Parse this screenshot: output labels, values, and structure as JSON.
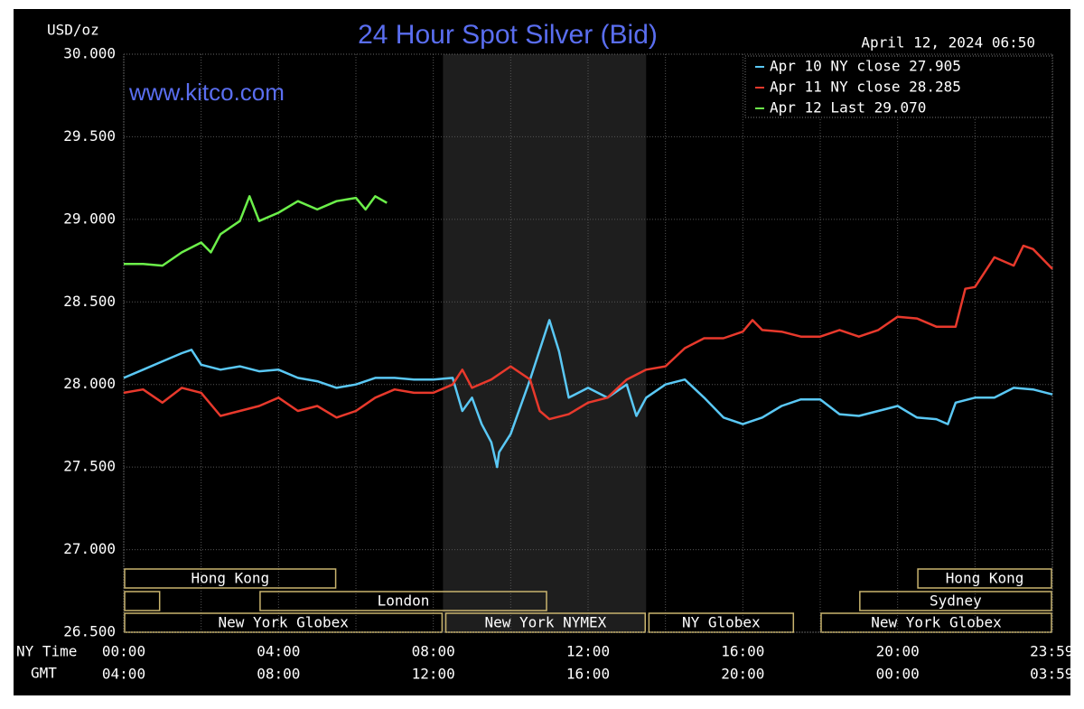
{
  "chart_data": {
    "type": "line",
    "title": "24 Hour Spot Silver (Bid)",
    "subtitle": "www.kitco.com",
    "y_label": "USD/oz",
    "timestamp": "April 12, 2024 06:50",
    "x_row_label": "NY Time",
    "x2_row_label": "GMT",
    "xlim": [
      0,
      24
    ],
    "ylim": [
      26.5,
      30
    ],
    "yticks": [
      {
        "value": 26.5,
        "label": "26.500"
      },
      {
        "value": 27,
        "label": "27.000"
      },
      {
        "value": 27.5,
        "label": "27.500"
      },
      {
        "value": 28,
        "label": "28.000"
      },
      {
        "value": 28.5,
        "label": "28.500"
      },
      {
        "value": 29,
        "label": "29.000"
      },
      {
        "value": 29.5,
        "label": "29.500"
      },
      {
        "value": 30,
        "label": "30.000"
      }
    ],
    "xticks": [
      {
        "value": 0,
        "label": "00:00"
      },
      {
        "value": 4,
        "label": "04:00"
      },
      {
        "value": 8,
        "label": "08:00"
      },
      {
        "value": 12,
        "label": "12:00"
      },
      {
        "value": 16,
        "label": "16:00"
      },
      {
        "value": 20,
        "label": "20:00"
      },
      {
        "value": 23.983,
        "label": "23:59"
      }
    ],
    "x2ticks": [
      {
        "value": 0,
        "label": "04:00"
      },
      {
        "value": 4,
        "label": "08:00"
      },
      {
        "value": 8,
        "label": "12:00"
      },
      {
        "value": 12,
        "label": "16:00"
      },
      {
        "value": 16,
        "label": "20:00"
      },
      {
        "value": 20,
        "label": "00:00"
      },
      {
        "value": 23.983,
        "label": "03:59"
      }
    ],
    "x_gridlines": [
      0,
      2,
      4,
      6,
      8,
      10,
      12,
      14,
      16,
      18,
      20,
      22,
      24
    ],
    "grid": true,
    "shaded_range": [
      8.25,
      13.5
    ],
    "legend": "top-right",
    "series": [
      {
        "name": "Apr 10 NY close 27.905",
        "color": "#5ac8f5",
        "x": [
          0,
          0.5,
          1,
          1.5,
          1.75,
          2,
          2.5,
          3,
          3.5,
          4,
          4.5,
          5,
          5.5,
          6,
          6.5,
          7,
          7.5,
          8,
          8.5,
          8.75,
          9,
          9.25,
          9.5,
          9.65,
          9.7,
          10,
          10.5,
          11,
          11.25,
          11.5,
          12,
          12.5,
          13,
          13.25,
          13.5,
          14,
          14.5,
          15,
          15.5,
          16,
          16.5,
          17,
          17.5,
          18,
          18.5,
          19,
          19.5,
          20,
          20.5,
          21,
          21.3,
          21.5,
          22,
          22.5,
          23,
          23.5,
          24
        ],
        "values": [
          28.04,
          28.09,
          28.14,
          28.19,
          28.21,
          28.12,
          28.09,
          28.11,
          28.08,
          28.09,
          28.04,
          28.02,
          27.98,
          28.0,
          28.04,
          28.04,
          28.03,
          28.03,
          28.04,
          27.84,
          27.92,
          27.76,
          27.65,
          27.5,
          27.59,
          27.7,
          28.03,
          28.39,
          28.2,
          27.92,
          27.98,
          27.92,
          28.0,
          27.81,
          27.92,
          28.0,
          28.03,
          27.92,
          27.8,
          27.76,
          27.8,
          27.87,
          27.91,
          27.91,
          27.82,
          27.81,
          27.84,
          27.87,
          27.8,
          27.79,
          27.76,
          27.89,
          27.92,
          27.92,
          27.98,
          27.97,
          27.94
        ]
      },
      {
        "name": "Apr 11 NY close 28.285",
        "color": "#e8392c",
        "x": [
          0,
          0.5,
          1,
          1.5,
          2,
          2.5,
          3,
          3.5,
          4,
          4.5,
          5,
          5.5,
          6,
          6.5,
          7,
          7.5,
          8,
          8.5,
          8.75,
          9,
          9.5,
          10,
          10.5,
          10.75,
          11,
          11.5,
          12,
          12.5,
          13,
          13.5,
          14,
          14.5,
          15,
          15.5,
          16,
          16.25,
          16.5,
          17,
          17.5,
          18,
          18.5,
          19,
          19.5,
          20,
          20.5,
          21,
          21.5,
          21.75,
          22,
          22.5,
          23,
          23.25,
          23.5,
          24
        ],
        "values": [
          27.95,
          27.97,
          27.89,
          27.98,
          27.95,
          27.81,
          27.84,
          27.87,
          27.92,
          27.84,
          27.87,
          27.8,
          27.84,
          27.92,
          27.97,
          27.95,
          27.95,
          28.0,
          28.09,
          27.98,
          28.03,
          28.11,
          28.03,
          27.84,
          27.79,
          27.82,
          27.89,
          27.92,
          28.03,
          28.09,
          28.11,
          28.22,
          28.28,
          28.28,
          28.32,
          28.39,
          28.33,
          28.32,
          28.29,
          28.29,
          28.33,
          28.29,
          28.33,
          28.41,
          28.4,
          28.35,
          28.35,
          28.58,
          28.59,
          28.77,
          28.72,
          28.84,
          28.82,
          28.7
        ]
      },
      {
        "name": "Apr 12 Last 29.070",
        "color": "#6cf04a",
        "x": [
          0,
          0.5,
          1,
          1.5,
          2,
          2.25,
          2.5,
          3,
          3.25,
          3.5,
          4,
          4.5,
          5,
          5.5,
          6,
          6.25,
          6.5,
          6.8
        ],
        "values": [
          28.73,
          28.73,
          28.72,
          28.8,
          28.86,
          28.8,
          28.91,
          28.99,
          29.14,
          28.99,
          29.04,
          29.11,
          29.06,
          29.11,
          29.13,
          29.06,
          29.14,
          29.1
        ]
      }
    ],
    "sessions": [
      {
        "label": "Hong Kong",
        "row": 0,
        "start": 0,
        "end": 5.5
      },
      {
        "label": "Hong Kong",
        "row": 0,
        "start": 20.5,
        "end": 24
      },
      {
        "label": null,
        "row": 1,
        "start": 0,
        "end": 0.95
      },
      {
        "label": "London",
        "row": 1,
        "start": 3.5,
        "end": 10.95
      },
      {
        "label": "Sydney",
        "row": 1,
        "start": 19,
        "end": 24
      },
      {
        "label": "New York Globex",
        "row": 2,
        "start": 0,
        "end": 8.25
      },
      {
        "label": "New York NYMEX",
        "row": 2,
        "start": 8.3,
        "end": 13.5
      },
      {
        "label": "NY Globex",
        "row": 2,
        "start": 13.55,
        "end": 17.33
      },
      {
        "label": "New York Globex",
        "row": 2,
        "start": 18,
        "end": 24
      }
    ]
  }
}
